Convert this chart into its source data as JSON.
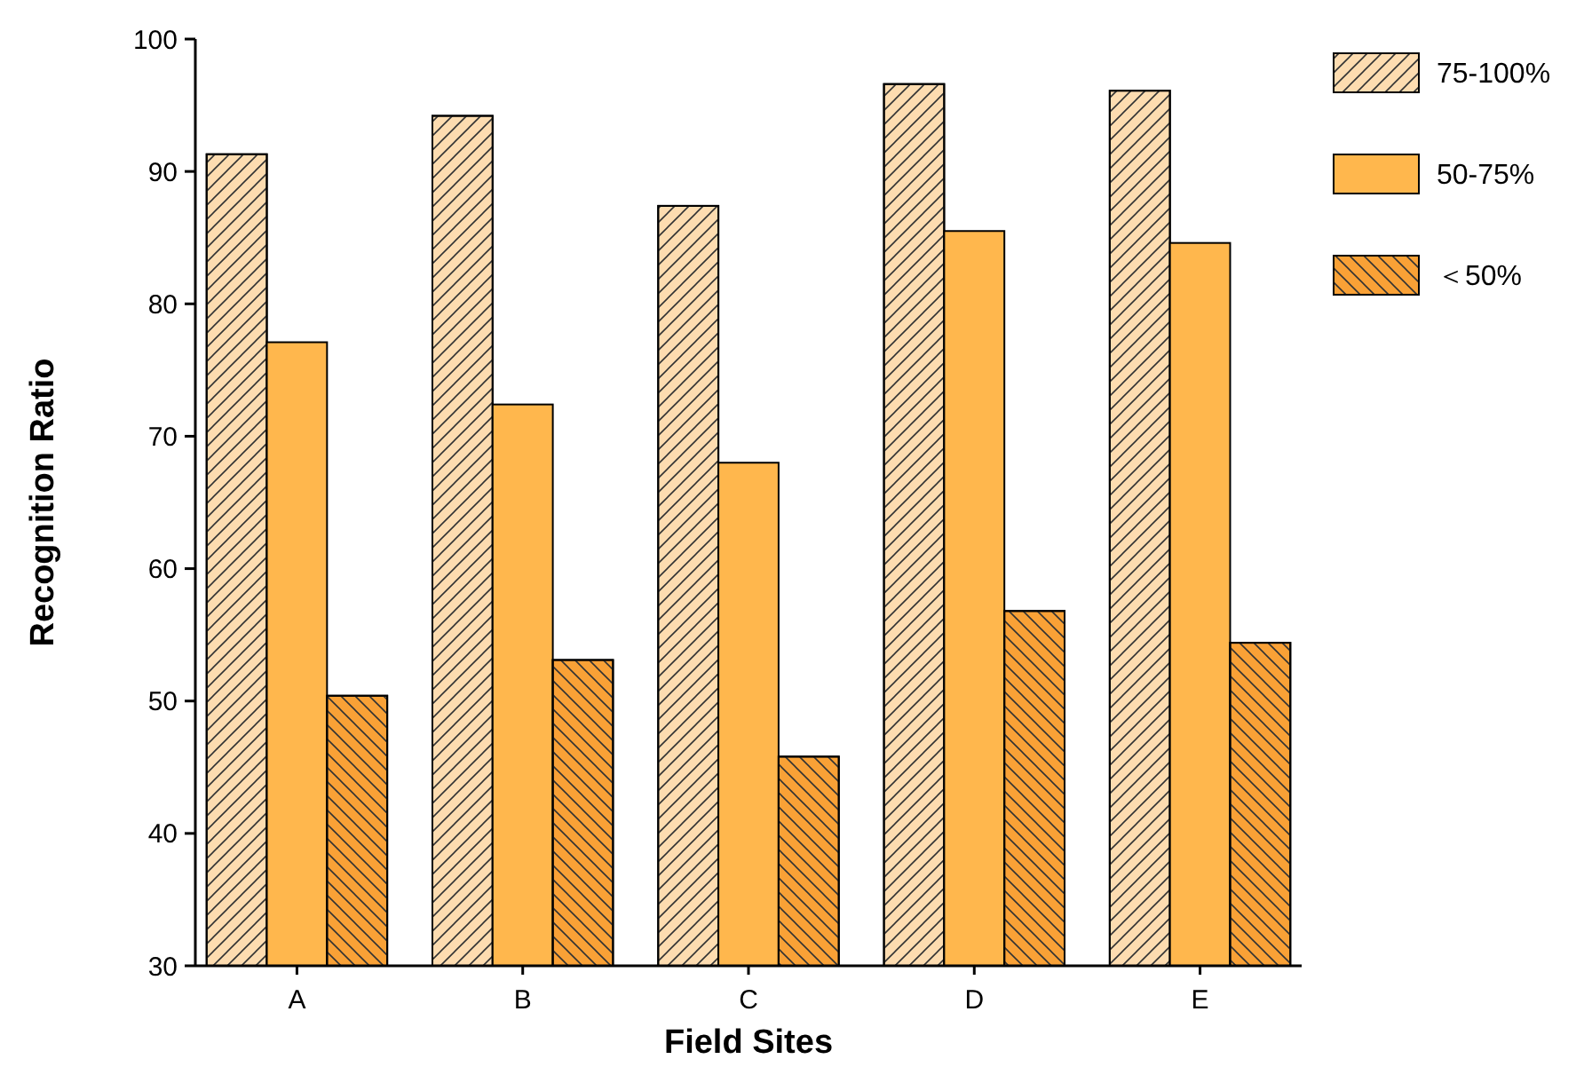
{
  "chart_data": {
    "type": "bar",
    "xlabel": "Field Sites",
    "ylabel": "Recognition Ratio",
    "categories": [
      "A",
      "B",
      "C",
      "D",
      "E"
    ],
    "ylim": [
      30,
      100
    ],
    "yticks": [
      30,
      40,
      50,
      60,
      70,
      80,
      90,
      100
    ],
    "legend": "top right",
    "grid": false,
    "series": [
      {
        "name": "75-100%",
        "color": "#fddcb0",
        "values": [
          91.3,
          94.2,
          87.4,
          96.6,
          96.1
        ]
      },
      {
        "name": "50-75%",
        "color": "#ffb74d",
        "values": [
          77.1,
          72.4,
          68.0,
          85.5,
          84.6
        ]
      },
      {
        "name": "＜50%",
        "color": "#f9a136",
        "values": [
          50.4,
          53.1,
          45.8,
          56.8,
          54.4
        ]
      }
    ]
  }
}
